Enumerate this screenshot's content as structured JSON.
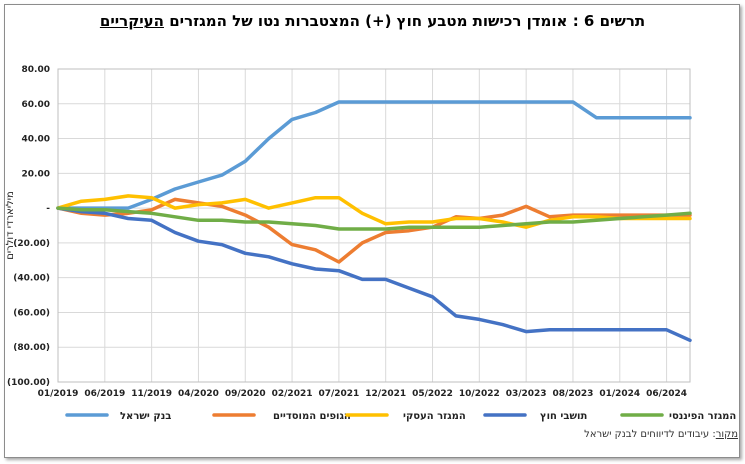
{
  "title": {
    "main": "תרשים 6 : אומדן רכישות מטבע חוץ (+) המצטברות נטו של המגזרים",
    "highlight": "העיקריים"
  },
  "source": {
    "label": "מקור",
    "text": ": עיבודים לדיווחים לבנק ישראל"
  },
  "chart_data": {
    "type": "line",
    "title": "תרשים 6 : אומדן רכישות מטבע חוץ (+) המצטברות נטו של המגזרים העיקריים",
    "ylabel": "מיליארדי דולרים",
    "xlabel": "",
    "ylim": [
      -100,
      80
    ],
    "ytick_values": [
      80,
      60,
      40,
      20,
      0,
      -20,
      -40,
      -60,
      -80,
      -100
    ],
    "ytick_labels": [
      "80.00",
      "60.00",
      "40.00",
      "20.00",
      "-",
      "(20.00)",
      "(40.00)",
      "(60.00)",
      "(80.00)",
      "(100.00)"
    ],
    "x": [
      "01/2019",
      "03/2019",
      "06/2019",
      "09/2019",
      "11/2019",
      "02/2020",
      "04/2020",
      "07/2020",
      "09/2020",
      "12/2020",
      "02/2021",
      "05/2021",
      "07/2021",
      "10/2021",
      "12/2021",
      "03/2022",
      "05/2022",
      "08/2022",
      "10/2022",
      "01/2023",
      "03/2023",
      "06/2023",
      "08/2023",
      "11/2023",
      "01/2024",
      "04/2024",
      "06/2024",
      "09/2024"
    ],
    "xtick_labels": [
      "01/2019",
      "06/2019",
      "11/2019",
      "04/2020",
      "09/2020",
      "02/2021",
      "07/2021",
      "12/2021",
      "05/2022",
      "10/2022",
      "03/2023",
      "08/2023",
      "01/2024",
      "06/2024"
    ],
    "grid": true,
    "legend_position": "bottom",
    "series": [
      {
        "name": "בנק ישראל",
        "color": "#5b9bd5",
        "values": [
          0,
          0,
          0,
          0,
          5,
          11,
          15,
          19,
          27,
          40,
          51,
          55,
          61,
          61,
          61,
          61,
          61,
          61,
          61,
          61,
          61,
          61,
          61,
          52,
          52,
          52,
          52,
          52
        ]
      },
      {
        "name": "הגופים המוסדיים",
        "color": "#ed7d31",
        "values": [
          0,
          -3,
          -4,
          -3,
          -1,
          5,
          3,
          1,
          -4,
          -11,
          -21,
          -24,
          -31,
          -20,
          -14,
          -13,
          -11,
          -5,
          -6,
          -4,
          1,
          -5,
          -4,
          -4,
          -4,
          -4,
          -4,
          -4
        ]
      },
      {
        "name": "המגזר העסקי",
        "color": "#ffc000",
        "values": [
          0,
          4,
          5,
          7,
          6,
          0,
          2,
          3,
          5,
          0,
          3,
          6,
          6,
          -3,
          -9,
          -8,
          -8,
          -6,
          -6,
          -8,
          -11,
          -7,
          -5,
          -5,
          -6,
          -6,
          -6,
          -6
        ]
      },
      {
        "name": "תושבי חוץ",
        "color": "#4472c4",
        "values": [
          0,
          -2,
          -3,
          -6,
          -7,
          -14,
          -19,
          -21,
          -26,
          -28,
          -32,
          -35,
          -36,
          -41,
          -41,
          -46,
          -51,
          -62,
          -64,
          -67,
          -71,
          -70,
          -70,
          -70,
          -70,
          -70,
          -70,
          -76
        ]
      },
      {
        "name": "המגזר הפיננסי",
        "color": "#70ad47",
        "values": [
          0,
          -1,
          -1,
          -2,
          -3,
          -5,
          -7,
          -7,
          -8,
          -8,
          -9,
          -10,
          -12,
          -12,
          -12,
          -11,
          -11,
          -11,
          -11,
          -10,
          -9,
          -8,
          -8,
          -7,
          -6,
          -5,
          -4,
          -3
        ]
      }
    ]
  }
}
